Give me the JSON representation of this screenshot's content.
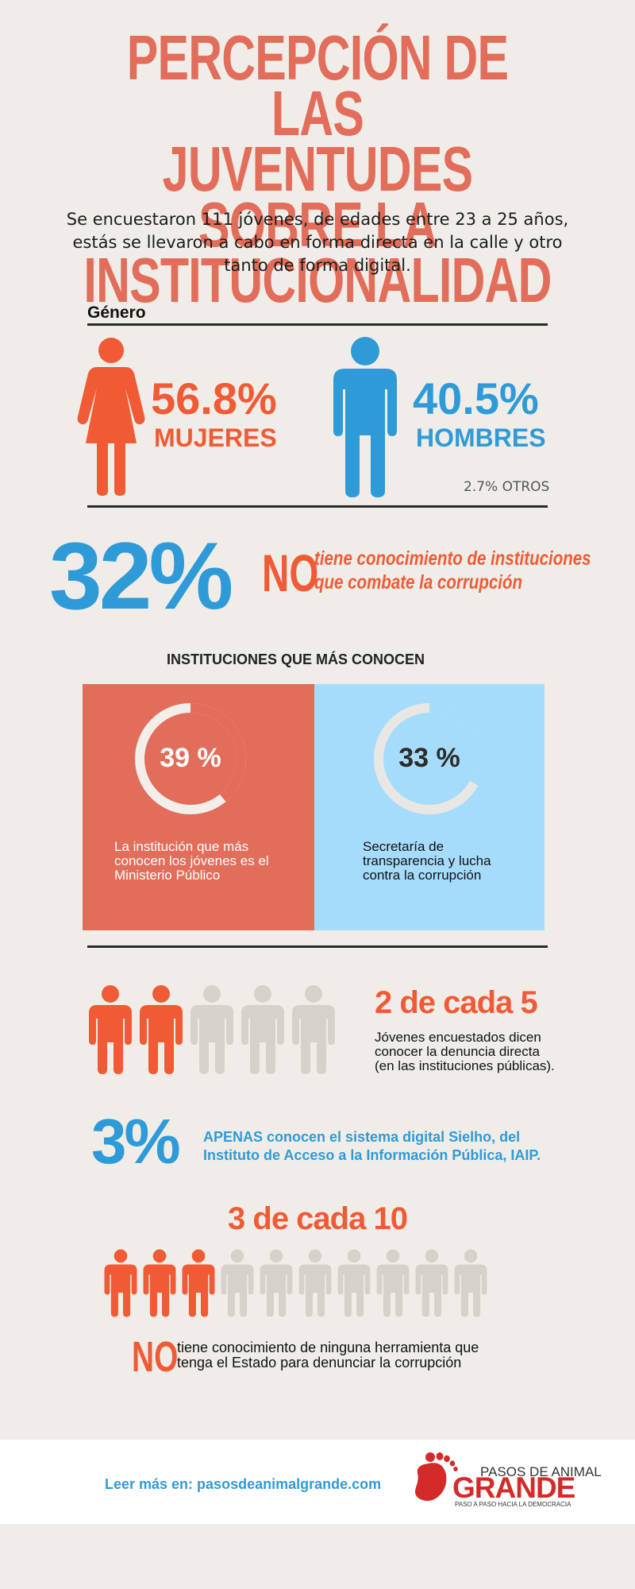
{
  "title": {
    "line1": "PERCEPCIÓN DE LAS",
    "line2": "JUVENTUDES SOBRE LA",
    "line3": "INSTITUCIONALIDAD"
  },
  "intro": {
    "line1": "Se encuestaron 111 jóvenes, de edades entre 23 a 25 años,",
    "line2": "estás se llevaron a cabo en forma directa en la calle y otro",
    "line3": "tanto de forma digital."
  },
  "gender": {
    "label": "Género",
    "women_pct": "56.8%",
    "women_label": "MUJERES",
    "men_pct": "40.5%",
    "men_label": "HOMBRES",
    "others": "2.7% OTROS"
  },
  "corruption_knowledge": {
    "pct": "32%",
    "no": "NO",
    "line1": "tiene conocimiento de instituciones",
    "line2": "que combate la corrupción"
  },
  "institutions": {
    "heading": "INSTITUCIONES QUE MÁS  CONOCEN",
    "left": {
      "pct_label": "39 %",
      "value": 39,
      "line1": "La institución que más",
      "line2": "conocen los jóvenes es el",
      "line3": "Ministerio Público"
    },
    "right": {
      "pct_label": "33 %",
      "value": 33,
      "line1": "Secretaría de",
      "line2": "transparencia y lucha",
      "line3": "contra la corrupción"
    }
  },
  "denuncia": {
    "headline": "2 de cada 5",
    "line1": "Jóvenes encuestados dicen",
    "line2": "conocer la denuncia directa",
    "line3": "(en las instituciones públicas).",
    "highlighted": 2,
    "total": 5
  },
  "sielho": {
    "pct": "3%",
    "line1": "APENAS conocen el sistema digital Sielho, del",
    "line2": "Instituto de Acceso a la Información Pública, IAIP."
  },
  "herramienta": {
    "headline": "3 de cada 10",
    "highlighted": 3,
    "total": 10,
    "no": "NO",
    "line1": "tiene conocimiento de ninguna herramienta que",
    "line2": "tenga el Estado para denunciar la corrupción"
  },
  "footer": {
    "read_more": "Leer más en:  pasosdeanimalgrande.com",
    "logo_top": "PASOS DE ANIMAL",
    "logo_main": "GRANDE",
    "logo_sub": "PASO A PASO HACIA LA DEMOCRACIA"
  },
  "colors": {
    "background": "#f0ede8",
    "title": "#e26d5a",
    "orange": "#f05a35",
    "blue": "#2e9bd8",
    "light_blue_panel": "#a6dcfb",
    "gray_person": "#d6d2cb",
    "logo_red": "#d42a2a"
  }
}
